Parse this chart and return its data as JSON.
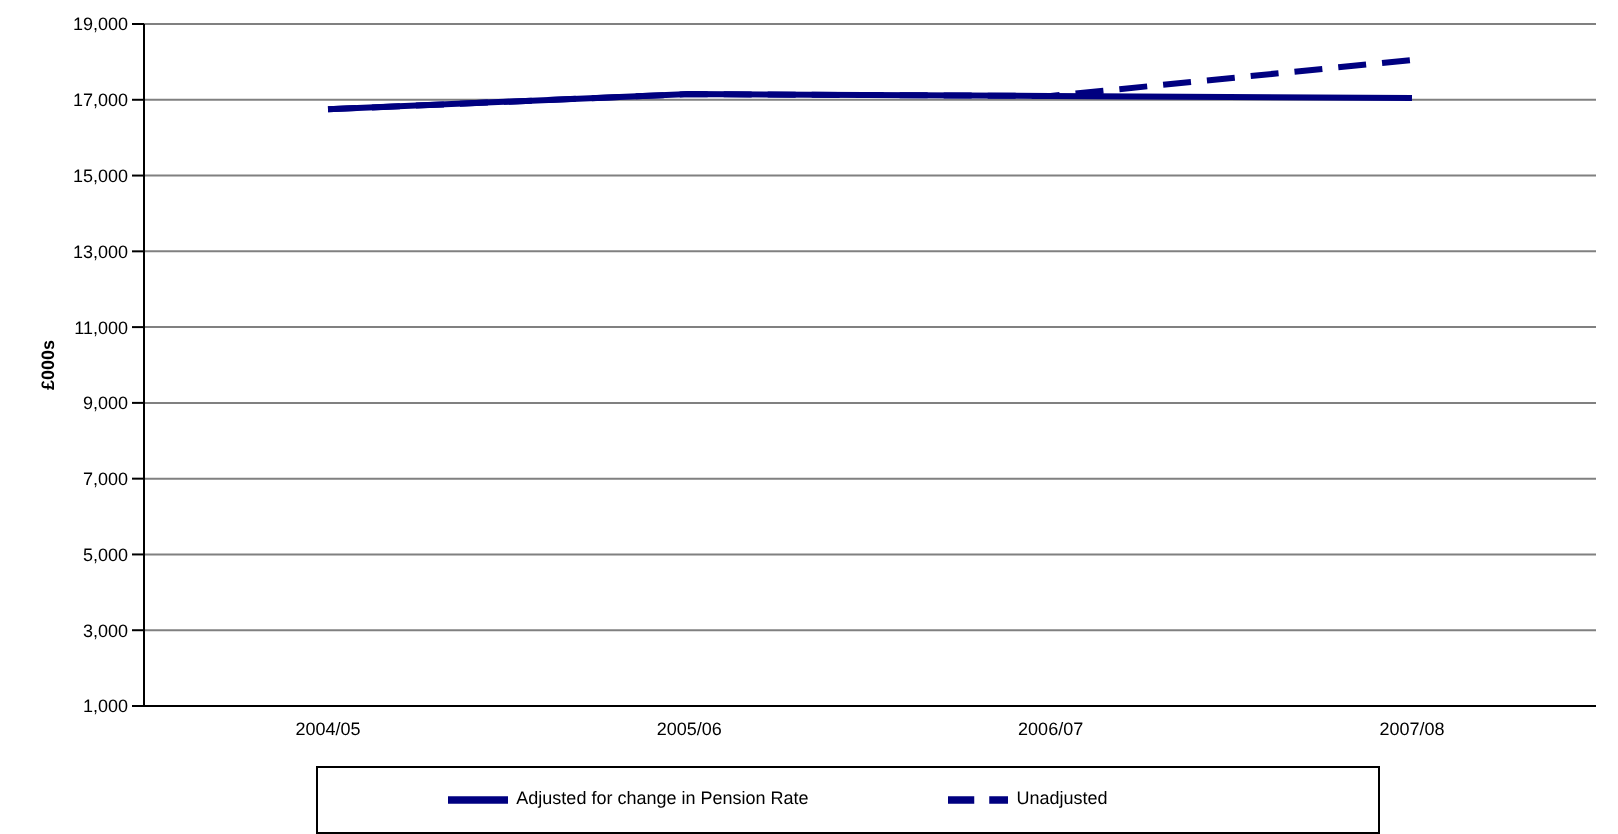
{
  "chart_data": {
    "type": "line",
    "ylabel": "£000s",
    "categories": [
      "2004/05",
      "2005/06",
      "2006/07",
      "2007/08"
    ],
    "series": [
      {
        "name": "Unadjusted",
        "color": "#000080",
        "line_style": "dashed",
        "values": [
          16750,
          17150,
          17100,
          18050
        ]
      },
      {
        "name": "Adjusted for change in Pension Rate",
        "color": "#000080",
        "line_style": "solid",
        "values": [
          16750,
          17150,
          17100,
          17050
        ]
      }
    ],
    "ylim": [
      1000,
      19000
    ],
    "yticks": [
      {
        "value": 1000,
        "label": "1,000"
      },
      {
        "value": 3000,
        "label": "3,000"
      },
      {
        "value": 5000,
        "label": "5,000"
      },
      {
        "value": 7000,
        "label": "7,000"
      },
      {
        "value": 9000,
        "label": "9,000"
      },
      {
        "value": 11000,
        "label": "11,000"
      },
      {
        "value": 13000,
        "label": "13,000"
      },
      {
        "value": 15000,
        "label": "15,000"
      },
      {
        "value": 17000,
        "label": "17,000"
      },
      {
        "value": 19000,
        "label": "19,000"
      }
    ],
    "grid": "y",
    "legend": "bottom",
    "marker": "none"
  }
}
